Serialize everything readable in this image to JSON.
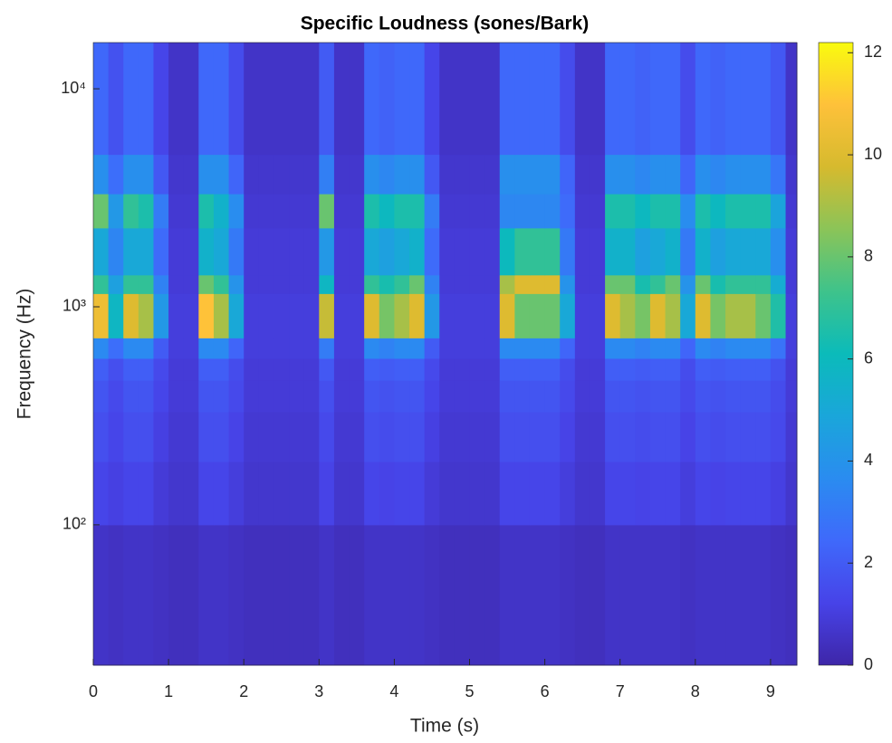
{
  "chart_data": {
    "type": "heatmap",
    "title": "Specific Loudness (sones/Bark)",
    "x_label": "Time (s)",
    "y_label": "Frequency (Hz)",
    "x": [
      0,
      0.2,
      0.4,
      0.6,
      0.8,
      1.0,
      1.2,
      1.4,
      1.6,
      1.8,
      2.0,
      2.2,
      2.4,
      2.6,
      2.8,
      3.0,
      3.2,
      3.4,
      3.6,
      3.8,
      4.0,
      4.2,
      4.4,
      4.6,
      4.8,
      5.0,
      5.2,
      5.4,
      5.6,
      5.8,
      6.0,
      6.2,
      6.4,
      6.6,
      6.8,
      7.0,
      7.2,
      7.4,
      7.6,
      7.8,
      8.0,
      8.2,
      8.4,
      8.6,
      8.8,
      9.0,
      9.2,
      9.35
    ],
    "y": [
      22.7,
      100,
      195,
      330,
      460,
      580,
      720,
      1150,
      1400,
      2300,
      3300,
      5000,
      16300
    ],
    "values": [
      [
        0.6,
        0.5,
        0.6,
        0.6,
        0.5,
        0.4,
        0.4,
        0.6,
        0.6,
        0.5,
        0.4,
        0.4,
        0.4,
        0.4,
        0.4,
        0.6,
        0.4,
        0.4,
        0.6,
        0.6,
        0.6,
        0.6,
        0.5,
        0.4,
        0.4,
        0.4,
        0.4,
        0.6,
        0.6,
        0.6,
        0.6,
        0.5,
        0.4,
        0.4,
        0.6,
        0.6,
        0.6,
        0.6,
        0.6,
        0.5,
        0.6,
        0.6,
        0.6,
        0.6,
        0.6,
        0.5,
        0.4
      ],
      [
        1.3,
        1.1,
        1.3,
        1.3,
        0.9,
        0.7,
        0.7,
        1.3,
        1.3,
        1.0,
        0.7,
        0.7,
        0.7,
        0.7,
        0.7,
        1.2,
        0.7,
        0.7,
        1.3,
        1.2,
        1.3,
        1.3,
        0.9,
        0.7,
        0.7,
        0.7,
        0.7,
        1.3,
        1.3,
        1.3,
        1.3,
        1.0,
        0.7,
        0.7,
        1.3,
        1.3,
        1.2,
        1.3,
        1.3,
        1.0,
        1.3,
        1.2,
        1.3,
        1.3,
        1.3,
        1.1,
        0.7
      ],
      [
        1.6,
        1.3,
        1.6,
        1.6,
        1.1,
        0.8,
        0.8,
        1.6,
        1.6,
        1.2,
        0.8,
        0.8,
        0.8,
        0.8,
        0.8,
        1.4,
        0.8,
        0.8,
        1.6,
        1.5,
        1.6,
        1.6,
        1.1,
        0.8,
        0.8,
        0.8,
        0.8,
        1.6,
        1.6,
        1.6,
        1.6,
        1.2,
        0.8,
        0.8,
        1.6,
        1.6,
        1.5,
        1.6,
        1.6,
        1.2,
        1.6,
        1.5,
        1.6,
        1.6,
        1.6,
        1.4,
        0.8
      ],
      [
        1.8,
        1.4,
        1.8,
        1.8,
        1.3,
        0.9,
        0.9,
        1.8,
        1.8,
        1.4,
        0.9,
        0.9,
        0.9,
        0.9,
        0.9,
        1.6,
        0.9,
        0.9,
        1.8,
        1.7,
        1.8,
        1.8,
        1.3,
        0.9,
        0.9,
        0.9,
        0.9,
        1.8,
        1.8,
        1.8,
        1.8,
        1.4,
        0.9,
        0.9,
        1.8,
        1.8,
        1.7,
        1.8,
        1.8,
        1.4,
        1.8,
        1.7,
        1.8,
        1.8,
        1.8,
        1.5,
        0.9
      ],
      [
        2.1,
        1.6,
        2.1,
        2.1,
        1.4,
        0.9,
        0.9,
        2.1,
        2.1,
        1.5,
        0.9,
        0.9,
        0.9,
        0.9,
        0.9,
        1.9,
        0.9,
        0.9,
        2.1,
        2.0,
        2.1,
        2.1,
        1.4,
        0.9,
        0.9,
        0.9,
        0.9,
        2.1,
        2.1,
        2.1,
        2.1,
        1.5,
        0.9,
        0.9,
        2.1,
        2.1,
        2.0,
        2.1,
        2.1,
        1.5,
        2.1,
        2.0,
        2.1,
        2.1,
        2.1,
        1.7,
        0.9
      ],
      [
        3.6,
        2.6,
        3.6,
        3.6,
        2.0,
        1.0,
        1.0,
        3.6,
        3.6,
        2.3,
        1.0,
        1.0,
        1.0,
        1.0,
        1.0,
        3.1,
        1.0,
        1.0,
        3.6,
        3.3,
        3.6,
        3.6,
        2.0,
        1.0,
        1.0,
        1.0,
        1.0,
        3.6,
        3.6,
        3.6,
        3.6,
        2.3,
        1.0,
        1.0,
        3.6,
        3.6,
        3.3,
        3.6,
        3.6,
        2.3,
        3.6,
        3.3,
        3.6,
        3.6,
        3.6,
        2.8,
        1.0
      ],
      [
        10.5,
        5.8,
        10.0,
        9.0,
        4.2,
        1.0,
        1.0,
        11.0,
        9.0,
        5.0,
        1.0,
        1.0,
        1.0,
        1.0,
        1.0,
        9.5,
        1.0,
        1.0,
        10.0,
        8.2,
        9.0,
        10.0,
        4.2,
        1.0,
        1.0,
        1.0,
        1.0,
        10.0,
        8.0,
        8.0,
        8.0,
        5.0,
        1.0,
        1.0,
        10.0,
        9.0,
        8.2,
        10.0,
        9.0,
        5.0,
        10.0,
        8.2,
        9.0,
        9.0,
        8.0,
        6.6,
        1.0
      ],
      [
        7.0,
        4.6,
        7.0,
        7.0,
        3.3,
        0.9,
        0.9,
        8.0,
        7.0,
        4.0,
        0.9,
        0.9,
        0.9,
        0.9,
        0.9,
        5.8,
        0.9,
        0.9,
        7.0,
        6.4,
        7.0,
        8.0,
        3.3,
        0.9,
        0.9,
        0.9,
        0.9,
        9.0,
        10.0,
        10.0,
        10.0,
        4.0,
        0.9,
        0.9,
        8.0,
        8.0,
        6.4,
        7.0,
        8.0,
        4.0,
        8.0,
        6.4,
        7.0,
        7.0,
        7.0,
        5.2,
        0.9
      ],
      [
        5.0,
        3.4,
        5.0,
        5.0,
        2.5,
        0.9,
        0.9,
        5.5,
        5.0,
        3.0,
        0.9,
        0.9,
        0.9,
        0.9,
        0.9,
        4.2,
        0.9,
        0.9,
        5.0,
        4.6,
        5.0,
        5.5,
        2.5,
        0.9,
        0.9,
        0.9,
        0.9,
        6.0,
        7.0,
        7.0,
        7.0,
        3.0,
        0.9,
        0.9,
        5.5,
        5.5,
        4.6,
        5.0,
        5.5,
        3.0,
        5.5,
        4.6,
        5.0,
        5.0,
        5.0,
        3.8,
        0.9
      ],
      [
        8.0,
        4.2,
        7.0,
        6.5,
        3.1,
        0.8,
        0.8,
        6.5,
        5.5,
        3.7,
        0.8,
        0.8,
        0.8,
        0.8,
        0.8,
        8.0,
        0.8,
        0.8,
        6.5,
        5.9,
        6.5,
        6.5,
        3.1,
        0.8,
        0.8,
        0.8,
        0.8,
        3.5,
        3.5,
        3.5,
        3.5,
        2.5,
        0.8,
        0.8,
        6.5,
        6.5,
        5.9,
        6.5,
        6.5,
        3.7,
        6.5,
        5.9,
        6.5,
        6.5,
        6.5,
        4.8,
        0.8
      ],
      [
        3.8,
        2.6,
        3.8,
        3.8,
        1.9,
        0.7,
        0.7,
        3.8,
        3.8,
        2.3,
        0.7,
        0.7,
        0.7,
        0.7,
        0.7,
        3.2,
        0.7,
        0.7,
        3.8,
        3.5,
        3.8,
        3.8,
        1.9,
        0.7,
        0.7,
        0.7,
        0.7,
        3.8,
        3.8,
        3.8,
        3.8,
        2.3,
        0.7,
        0.7,
        3.8,
        3.8,
        3.5,
        3.8,
        3.8,
        2.3,
        3.8,
        3.5,
        3.8,
        3.8,
        3.8,
        2.9,
        0.7
      ],
      [
        2.4,
        1.7,
        2.4,
        2.4,
        1.3,
        0.6,
        0.6,
        2.4,
        2.4,
        1.5,
        0.6,
        0.6,
        0.6,
        0.6,
        0.6,
        2.0,
        0.6,
        0.6,
        2.4,
        2.2,
        2.4,
        2.4,
        1.3,
        0.6,
        0.6,
        0.6,
        0.6,
        2.4,
        2.4,
        2.4,
        2.4,
        1.5,
        0.6,
        0.6,
        2.4,
        2.4,
        2.2,
        2.4,
        2.4,
        1.5,
        2.4,
        2.2,
        2.4,
        2.4,
        2.4,
        1.9,
        0.6
      ]
    ],
    "xlim": [
      0,
      9.35
    ],
    "xticks": [
      0,
      1,
      2,
      3,
      4,
      5,
      6,
      7,
      8,
      9
    ],
    "ylim": [
      22.7,
      16300
    ],
    "y_scale": "log",
    "yticks": [
      {
        "value": 100,
        "label": "10²"
      },
      {
        "value": 1000,
        "label": "10³"
      },
      {
        "value": 10000,
        "label": "10⁴"
      }
    ],
    "colormap": "parula",
    "clim": [
      0,
      12.2
    ],
    "cticks": [
      0,
      2,
      4,
      6,
      8,
      10,
      12
    ]
  }
}
